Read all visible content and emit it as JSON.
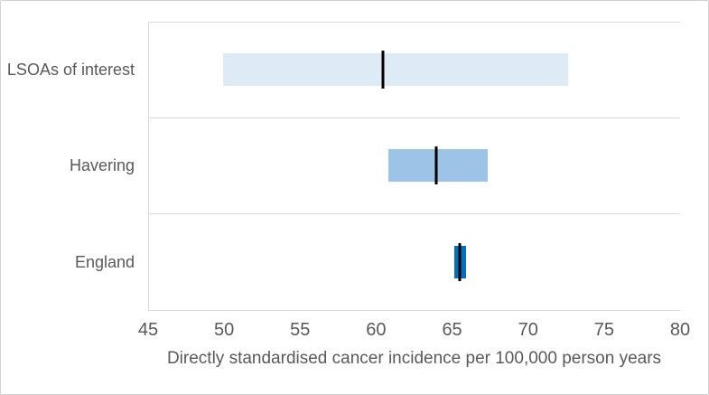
{
  "chart_data": {
    "type": "bar",
    "subtype": "horizontal-interval-with-point-marker",
    "title": "",
    "xlabel": "Directly standardised cancer incidence per 100,000 person years",
    "ylabel": "",
    "xlim": [
      45,
      80
    ],
    "xticks": [
      45,
      50,
      55,
      60,
      65,
      70,
      75,
      80
    ],
    "grid": "band-separators-only",
    "legend": "none",
    "categories": [
      "LSOAs of interest",
      "Havering",
      "England"
    ],
    "series": [
      {
        "name": "LSOAs of interest",
        "ci_low": 49.9,
        "ci_high": 72.6,
        "value": 60.4,
        "bar_color": "#deebf7"
      },
      {
        "name": "Havering",
        "ci_low": 60.8,
        "ci_high": 67.3,
        "value": 63.9,
        "bar_color": "#9dc3e6"
      },
      {
        "name": "England",
        "ci_low": 65.1,
        "ci_high": 65.9,
        "value": 65.5,
        "bar_color": "#0070c0"
      }
    ],
    "marker_color": "#000000",
    "grid_color": "#d9d9d9",
    "text_color": "#595959",
    "frame_border_color": "#d2d2d2",
    "background_color": "#ffffff"
  }
}
